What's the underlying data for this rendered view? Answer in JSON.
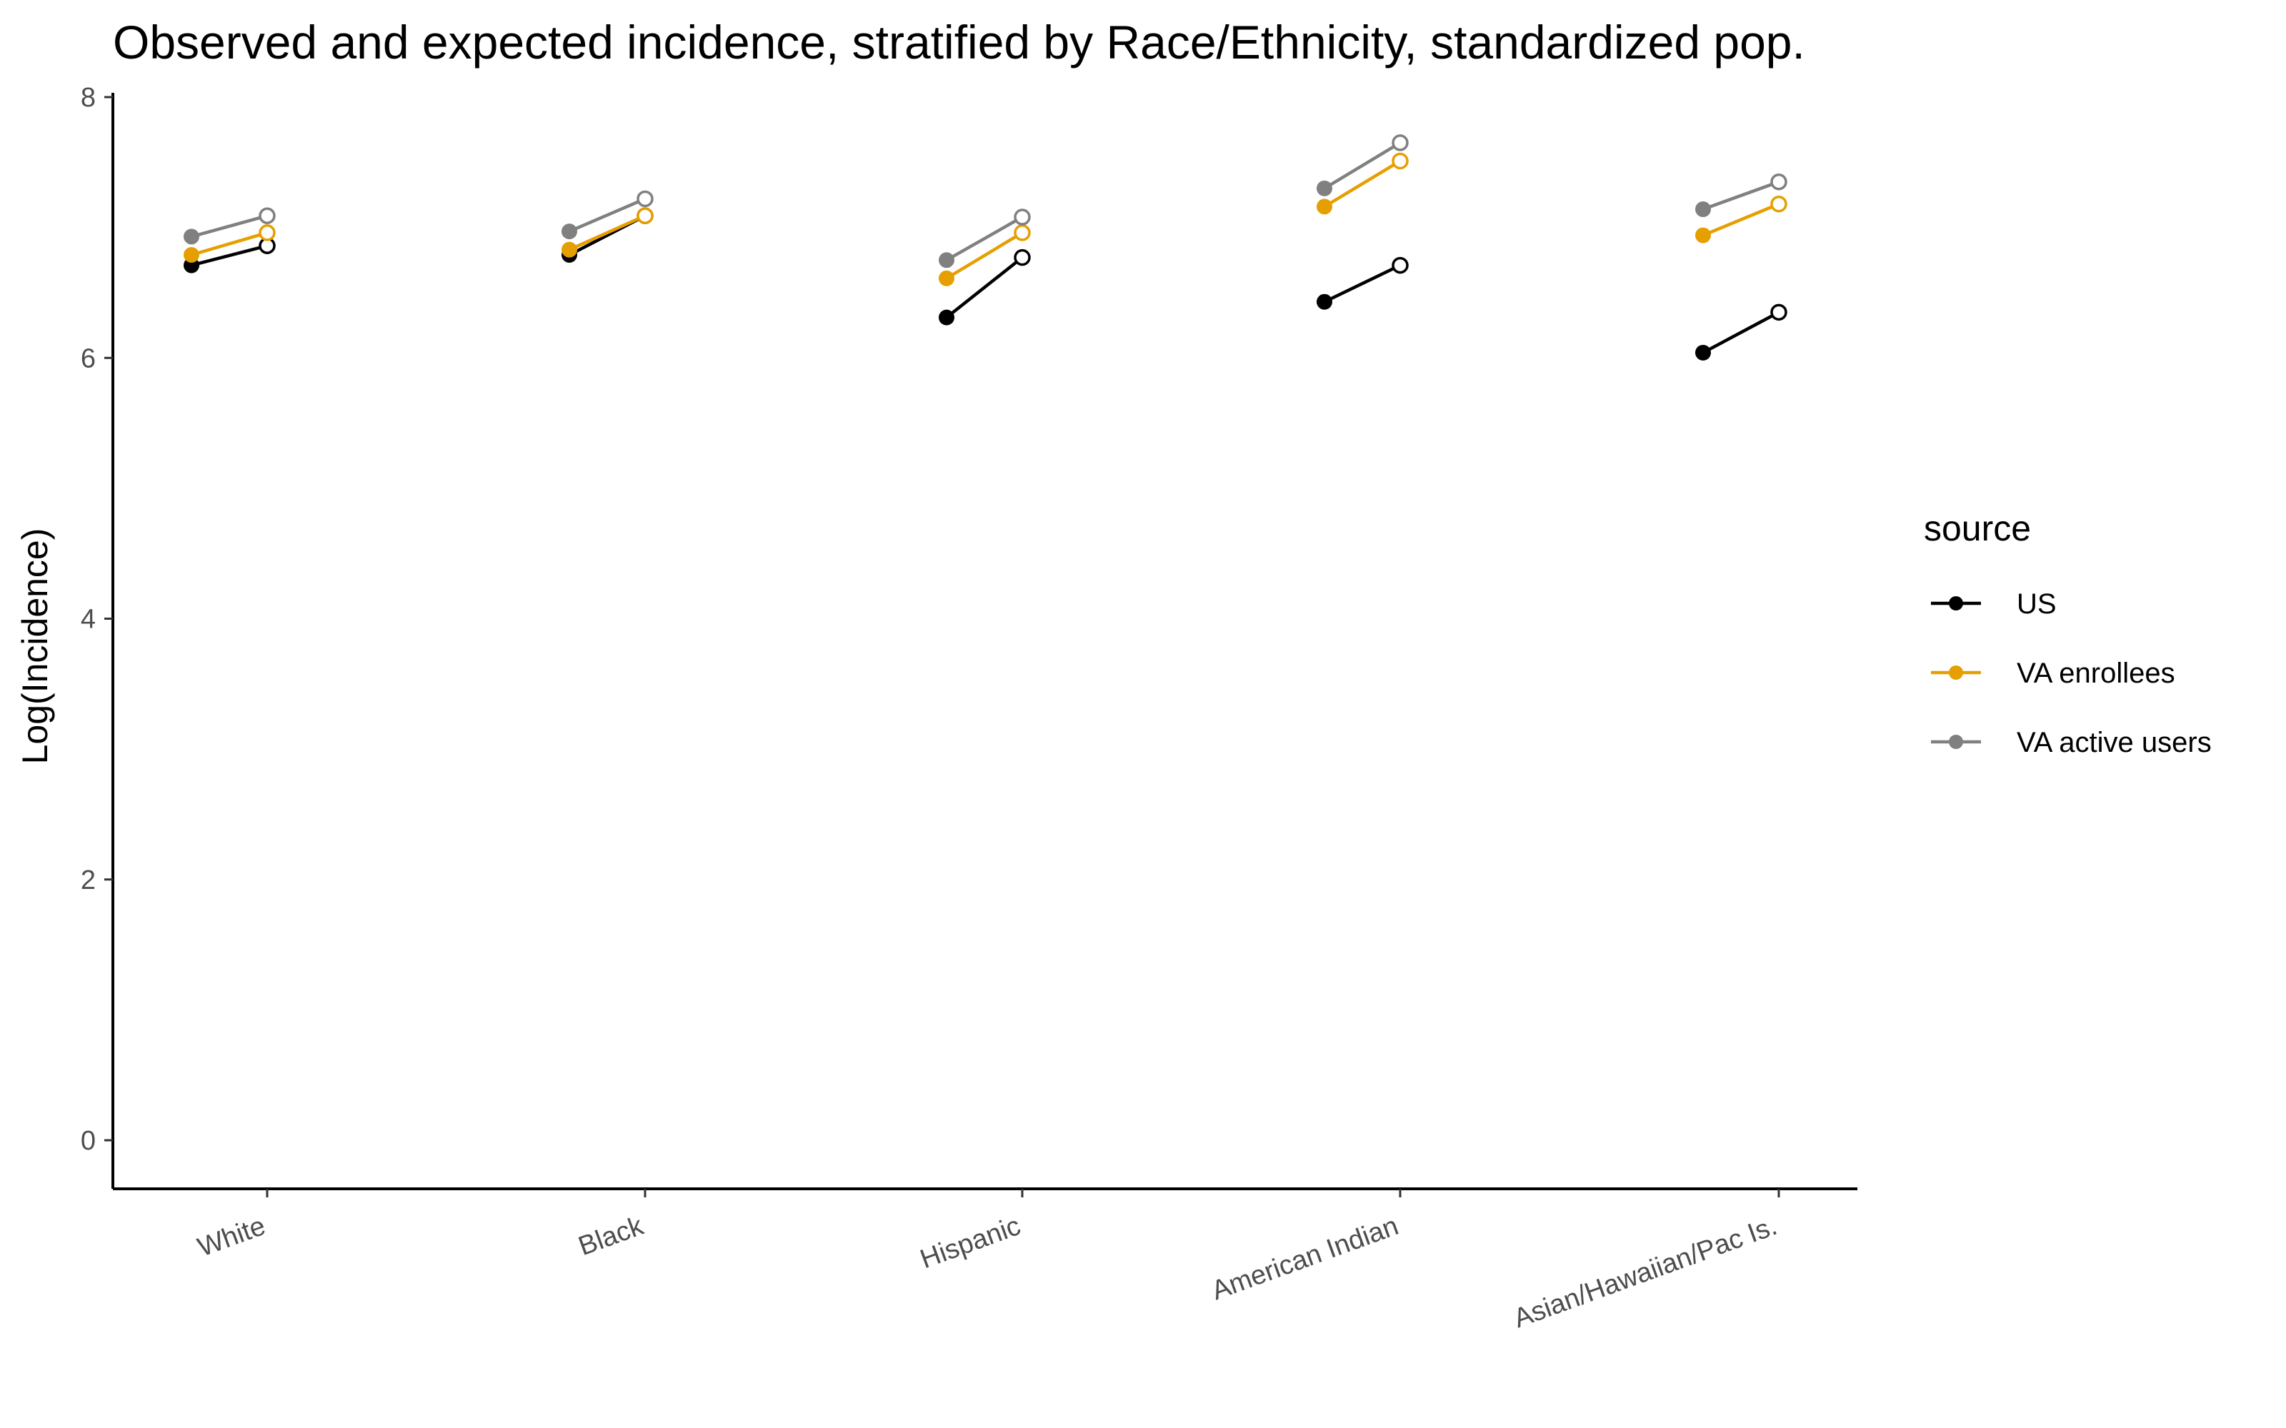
{
  "chart_data": {
    "type": "line",
    "title": "Observed and expected incidence, stratified by Race/Ethnicity, standardized pop.",
    "ylabel": "Log(Incidence)",
    "xlabel": "",
    "ylim": [
      -0.4,
      8
    ],
    "yticks": [
      0,
      2,
      4,
      6,
      8
    ],
    "categories": [
      "White",
      "Black",
      "Hispanic",
      "American Indian",
      "Asian/Hawaiian/Pac Is."
    ],
    "point_types": [
      "observed (filled)",
      "expected (open)"
    ],
    "legend": {
      "title": "source",
      "position": "right"
    },
    "grid": false,
    "series": [
      {
        "name": "US",
        "color": "#000000",
        "observed": [
          6.71,
          6.79,
          6.31,
          6.43,
          6.04
        ],
        "expected": [
          6.86,
          7.09,
          6.77,
          6.71,
          6.35
        ]
      },
      {
        "name": "VA enrollees",
        "color": "#E69F00",
        "observed": [
          6.79,
          6.83,
          6.61,
          7.16,
          6.94
        ],
        "expected": [
          6.96,
          7.09,
          6.96,
          7.51,
          7.18
        ]
      },
      {
        "name": "VA active users",
        "color": "#808080",
        "observed": [
          6.93,
          6.97,
          6.75,
          7.3,
          7.14
        ],
        "expected": [
          7.09,
          7.22,
          7.08,
          7.65,
          7.35
        ]
      }
    ]
  }
}
